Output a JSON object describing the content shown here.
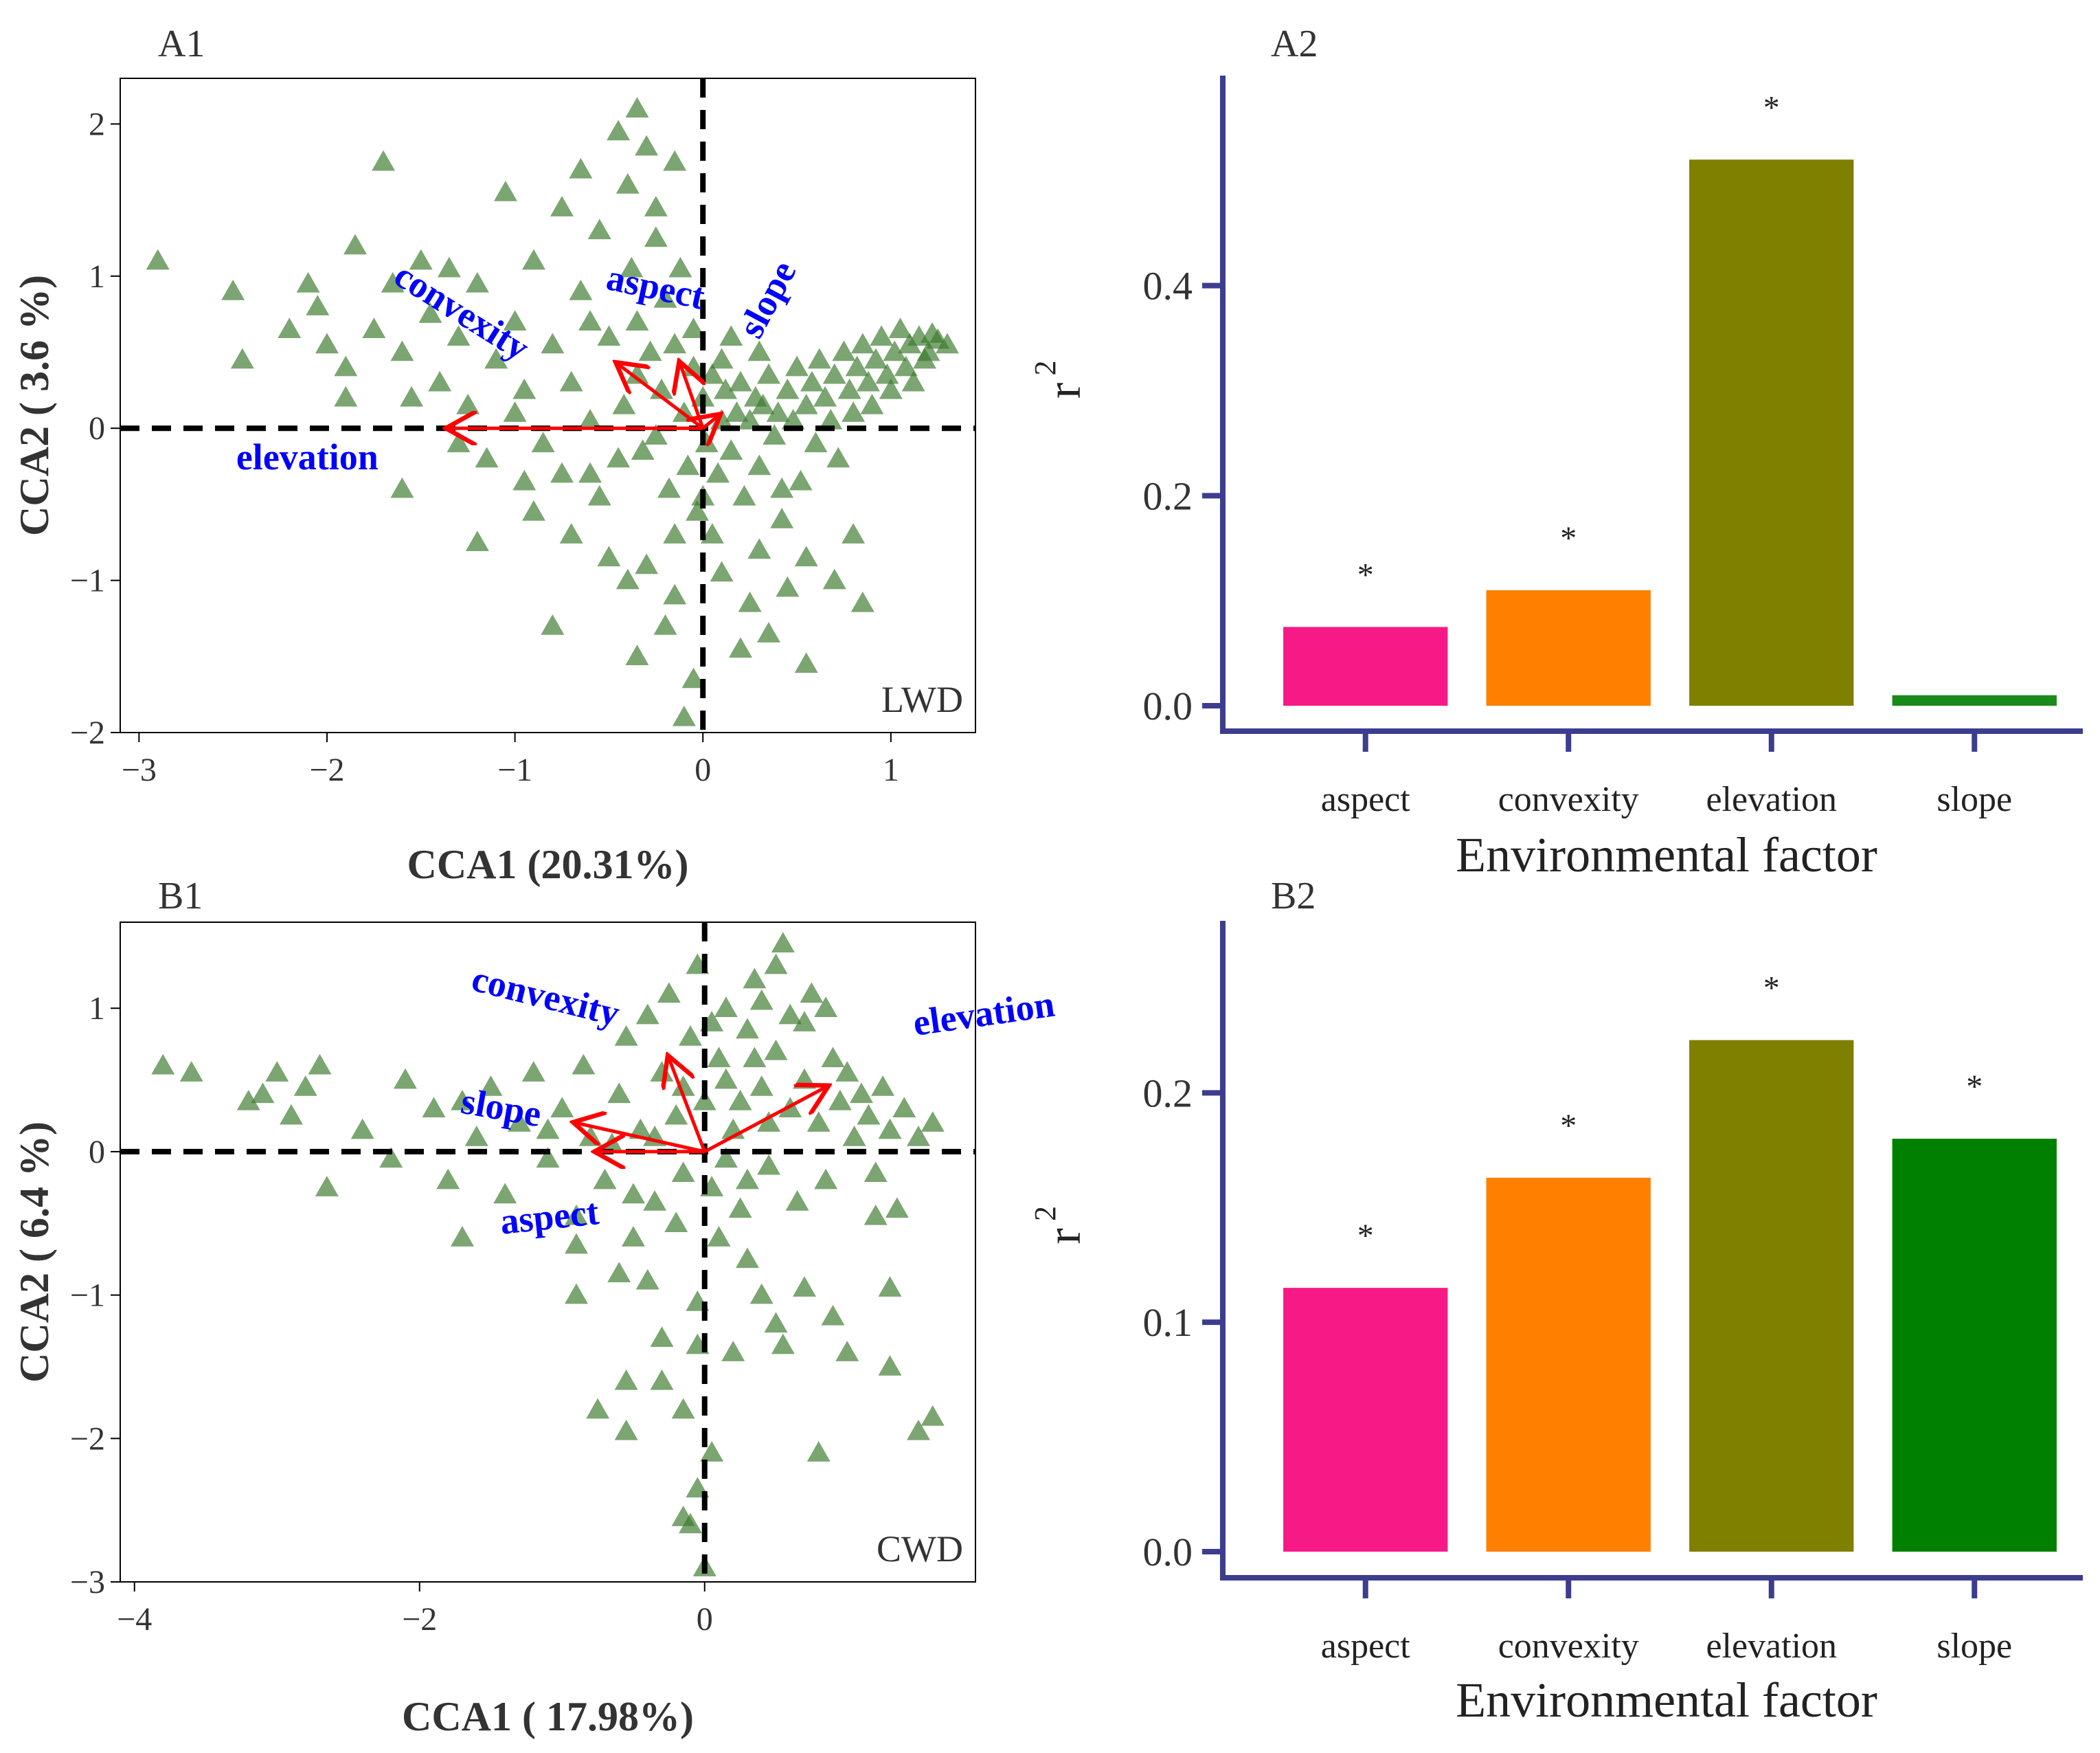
{
  "chart_data": [
    {
      "id": "A1",
      "panel_label": "A1",
      "type": "scatter",
      "title": "",
      "xlabel": "CCA1 (20.31%)",
      "ylabel": "CCA2 ( 3.6 %)",
      "xlim": [
        -3.1,
        1.45
      ],
      "ylim": [
        -2.0,
        2.3
      ],
      "xticks": [
        -3,
        -2,
        -1,
        0,
        1
      ],
      "xtick_labels": [
        "−3",
        "−2",
        "−1",
        "0",
        "1"
      ],
      "yticks": [
        -2,
        -1,
        0,
        1,
        2
      ],
      "ytick_labels": [
        "−2",
        "−1",
        "0",
        "1",
        "2"
      ],
      "grid": false,
      "corner_label": "LWD",
      "point_color": "#3d7a2e",
      "arrow_color": "#ff0000",
      "arrow_label_color": "#0000ff",
      "reference_lines": {
        "x": 0,
        "y": 0
      },
      "arrows": [
        {
          "name": "elevation",
          "end": [
            -1.35,
            0.0
          ]
        },
        {
          "name": "convexity",
          "end": [
            -0.45,
            0.42
          ]
        },
        {
          "name": "aspect",
          "end": [
            -0.12,
            0.42
          ]
        },
        {
          "name": "slope",
          "end": [
            0.08,
            0.08
          ]
        }
      ],
      "points": [
        [
          -2.9,
          1.1
        ],
        [
          -2.5,
          0.9
        ],
        [
          -2.45,
          0.45
        ],
        [
          -2.1,
          0.95
        ],
        [
          -2.05,
          0.8
        ],
        [
          -2.0,
          0.55
        ],
        [
          -1.9,
          0.4
        ],
        [
          -1.85,
          1.2
        ],
        [
          -1.75,
          0.65
        ],
        [
          -1.7,
          1.75
        ],
        [
          -1.65,
          0.95
        ],
        [
          -1.6,
          0.5
        ],
        [
          -1.55,
          0.2
        ],
        [
          -1.5,
          1.1
        ],
        [
          -1.45,
          0.75
        ],
        [
          -1.4,
          0.3
        ],
        [
          -1.35,
          1.05
        ],
        [
          -1.3,
          0.6
        ],
        [
          -1.25,
          0.15
        ],
        [
          -1.2,
          0.95
        ],
        [
          -1.15,
          -0.2
        ],
        [
          -1.1,
          0.45
        ],
        [
          -1.05,
          1.55
        ],
        [
          -1.0,
          0.7
        ],
        [
          -0.95,
          0.25
        ],
        [
          -0.9,
          1.1
        ],
        [
          -0.85,
          -0.1
        ],
        [
          -0.8,
          0.55
        ],
        [
          -0.75,
          1.45
        ],
        [
          -0.7,
          0.3
        ],
        [
          -0.65,
          0.9
        ],
        [
          -0.6,
          -0.3
        ],
        [
          -0.55,
          1.3
        ],
        [
          -0.5,
          0.6
        ],
        [
          -0.45,
          1.95
        ],
        [
          -0.42,
          0.15
        ],
        [
          -0.4,
          1.6
        ],
        [
          -0.38,
          1.05
        ],
        [
          -0.35,
          0.7
        ],
        [
          -0.32,
          -0.15
        ],
        [
          -0.3,
          1.85
        ],
        [
          -0.28,
          0.5
        ],
        [
          -0.25,
          1.25
        ],
        [
          -0.22,
          0.25
        ],
        [
          -0.2,
          0.85
        ],
        [
          -0.18,
          -0.4
        ],
        [
          -0.15,
          0.55
        ],
        [
          -0.12,
          1.05
        ],
        [
          -0.1,
          0.1
        ],
        [
          -0.08,
          -0.25
        ],
        [
          -0.05,
          0.4
        ],
        [
          -0.03,
          -0.55
        ],
        [
          0.0,
          0.2
        ],
        [
          0.02,
          -0.1
        ],
        [
          0.05,
          0.35
        ],
        [
          0.08,
          -0.3
        ],
        [
          0.1,
          0.05
        ],
        [
          0.12,
          0.25
        ],
        [
          0.15,
          -0.15
        ],
        [
          0.18,
          0.1
        ],
        [
          0.2,
          0.3
        ],
        [
          0.22,
          -0.45
        ],
        [
          0.25,
          0.05
        ],
        [
          0.28,
          0.2
        ],
        [
          0.3,
          -0.25
        ],
        [
          0.32,
          0.15
        ],
        [
          0.35,
          0.35
        ],
        [
          0.38,
          -0.05
        ],
        [
          0.4,
          0.1
        ],
        [
          0.42,
          -0.6
        ],
        [
          0.45,
          0.25
        ],
        [
          0.48,
          0.05
        ],
        [
          0.5,
          0.4
        ],
        [
          0.52,
          -0.35
        ],
        [
          0.55,
          0.15
        ],
        [
          0.58,
          0.3
        ],
        [
          0.6,
          -0.1
        ],
        [
          0.62,
          0.45
        ],
        [
          0.65,
          0.2
        ],
        [
          0.68,
          0.05
        ],
        [
          0.7,
          0.35
        ],
        [
          0.72,
          -0.2
        ],
        [
          0.75,
          0.5
        ],
        [
          0.78,
          0.25
        ],
        [
          0.8,
          0.1
        ],
        [
          0.82,
          0.4
        ],
        [
          0.85,
          0.55
        ],
        [
          0.88,
          0.3
        ],
        [
          0.9,
          0.15
        ],
        [
          0.92,
          0.45
        ],
        [
          0.95,
          0.6
        ],
        [
          0.98,
          0.35
        ],
        [
          1.0,
          0.25
        ],
        [
          1.02,
          0.5
        ],
        [
          1.05,
          0.65
        ],
        [
          1.08,
          0.4
        ],
        [
          1.1,
          0.55
        ],
        [
          1.12,
          0.3
        ],
        [
          1.15,
          0.6
        ],
        [
          1.18,
          0.45
        ],
        [
          1.2,
          0.5
        ],
        [
          1.25,
          0.58
        ],
        [
          1.3,
          0.55
        ],
        [
          1.22,
          0.62
        ],
        [
          -1.6,
          -0.4
        ],
        [
          -0.9,
          -0.55
        ],
        [
          -0.7,
          -0.7
        ],
        [
          -0.5,
          -0.85
        ],
        [
          -0.4,
          -1.0
        ],
        [
          -0.3,
          -0.9
        ],
        [
          -0.15,
          -1.1
        ],
        [
          0.1,
          -0.95
        ],
        [
          0.25,
          -1.15
        ],
        [
          0.3,
          -0.8
        ],
        [
          0.45,
          -1.05
        ],
        [
          0.55,
          -0.85
        ],
        [
          0.7,
          -1.0
        ],
        [
          0.8,
          -0.7
        ],
        [
          0.85,
          -1.15
        ],
        [
          -0.2,
          -1.3
        ],
        [
          0.2,
          -1.45
        ],
        [
          0.55,
          -1.55
        ],
        [
          -0.8,
          -1.3
        ],
        [
          -0.35,
          -1.5
        ],
        [
          -0.1,
          -1.9
        ],
        [
          0.35,
          -1.35
        ],
        [
          -0.05,
          -1.65
        ],
        [
          -1.2,
          -0.75
        ],
        [
          -0.75,
          -0.3
        ],
        [
          -0.6,
          0.05
        ],
        [
          -0.55,
          -0.45
        ],
        [
          -0.45,
          -0.2
        ],
        [
          -0.35,
          0.35
        ],
        [
          -0.25,
          -0.05
        ],
        [
          -0.15,
          -0.7
        ],
        [
          -0.05,
          0.65
        ],
        [
          0.05,
          -0.7
        ],
        [
          0.15,
          0.6
        ],
        [
          0.3,
          0.5
        ],
        [
          0.42,
          -0.4
        ],
        [
          -1.9,
          0.2
        ],
        [
          -2.2,
          0.65
        ],
        [
          -0.65,
          1.7
        ],
        [
          -0.35,
          2.1
        ],
        [
          -0.25,
          1.45
        ],
        [
          -0.15,
          1.75
        ],
        [
          0.0,
          -0.45
        ],
        [
          0.1,
          0.45
        ],
        [
          -0.6,
          0.7
        ],
        [
          -1.0,
          0.1
        ],
        [
          -1.3,
          -0.1
        ],
        [
          -0.95,
          -0.35
        ]
      ]
    },
    {
      "id": "A2",
      "panel_label": "A2",
      "type": "bar",
      "title": "",
      "xlabel": "Environmental factor",
      "ylabel": "r",
      "ylabel_superscript": "2",
      "categories": [
        "aspect",
        "convexity",
        "elevation",
        "slope"
      ],
      "values": [
        0.075,
        0.11,
        0.52,
        0.01
      ],
      "significance": [
        "*",
        "*",
        "*",
        ""
      ],
      "colors": [
        "#f71a86",
        "#ff7f00",
        "#7f7f00",
        "#1a8a1a"
      ],
      "ylim": [
        0,
        0.6
      ],
      "yticks": [
        0.0,
        0.2,
        0.4
      ],
      "ytick_labels": [
        "0.0",
        "0.2",
        "0.4"
      ],
      "axis_color": "#3d3d8f",
      "grid": false
    },
    {
      "id": "B1",
      "panel_label": "B1",
      "type": "scatter",
      "title": "",
      "xlabel": "CCA1 ( 17.98%)",
      "ylabel": "CCA2 ( 6.4 %)",
      "xlim": [
        -4.1,
        1.9
      ],
      "ylim": [
        -3.0,
        1.6
      ],
      "xticks": [
        -4,
        -2,
        0
      ],
      "xtick_labels": [
        "−4",
        "−2",
        "0"
      ],
      "yticks": [
        -3,
        -2,
        -1,
        0,
        1
      ],
      "ytick_labels": [
        "−3",
        "−2",
        "−1",
        "0",
        "1"
      ],
      "grid": false,
      "corner_label": "CWD",
      "point_color": "#3d7a2e",
      "arrow_color": "#ff0000",
      "arrow_label_color": "#0000ff",
      "reference_lines": {
        "x": 0,
        "y": 0
      },
      "arrows": [
        {
          "name": "convexity",
          "end": [
            -0.25,
            0.65
          ]
        },
        {
          "name": "elevation",
          "end": [
            0.85,
            0.45
          ]
        },
        {
          "name": "slope",
          "end": [
            -0.9,
            0.2
          ]
        },
        {
          "name": "aspect",
          "end": [
            -0.75,
            0.0
          ]
        }
      ],
      "points": [
        [
          -3.8,
          0.6
        ],
        [
          -3.6,
          0.55
        ],
        [
          -3.2,
          0.35
        ],
        [
          -3.1,
          0.4
        ],
        [
          -3.0,
          0.55
        ],
        [
          -2.9,
          0.25
        ],
        [
          -2.8,
          0.45
        ],
        [
          -2.7,
          0.6
        ],
        [
          -2.65,
          -0.25
        ],
        [
          -2.4,
          0.15
        ],
        [
          -2.2,
          -0.05
        ],
        [
          -2.1,
          0.5
        ],
        [
          -1.9,
          0.3
        ],
        [
          -1.8,
          -0.2
        ],
        [
          -1.7,
          0.35
        ],
        [
          -1.6,
          0.1
        ],
        [
          -1.5,
          0.45
        ],
        [
          -1.4,
          -0.3
        ],
        [
          -1.3,
          0.2
        ],
        [
          -1.2,
          0.55
        ],
        [
          -1.1,
          -0.05
        ],
        [
          -1.0,
          0.3
        ],
        [
          -0.9,
          -0.45
        ],
        [
          -0.85,
          0.6
        ],
        [
          -0.8,
          0.1
        ],
        [
          -0.7,
          -0.2
        ],
        [
          -0.6,
          0.4
        ],
        [
          -0.55,
          0.8
        ],
        [
          -0.5,
          -0.6
        ],
        [
          -0.45,
          0.15
        ],
        [
          -0.4,
          0.95
        ],
        [
          -0.35,
          -0.35
        ],
        [
          -0.3,
          0.55
        ],
        [
          -0.25,
          1.1
        ],
        [
          -0.2,
          0.25
        ],
        [
          -0.15,
          -0.15
        ],
        [
          -0.1,
          0.8
        ],
        [
          -0.05,
          1.3
        ],
        [
          0.0,
          0.35
        ],
        [
          0.05,
          -0.25
        ],
        [
          0.1,
          0.65
        ],
        [
          0.15,
          1.0
        ],
        [
          0.2,
          0.15
        ],
        [
          0.25,
          -0.4
        ],
        [
          0.3,
          0.85
        ],
        [
          0.35,
          1.2
        ],
        [
          0.4,
          0.45
        ],
        [
          0.45,
          -0.1
        ],
        [
          0.5,
          0.7
        ],
        [
          0.55,
          1.45
        ],
        [
          0.6,
          0.3
        ],
        [
          0.65,
          -0.35
        ],
        [
          0.7,
          0.9
        ],
        [
          0.75,
          1.1
        ],
        [
          0.8,
          0.2
        ],
        [
          0.85,
          -0.2
        ],
        [
          0.9,
          0.65
        ],
        [
          0.95,
          0.35
        ],
        [
          1.0,
          0.55
        ],
        [
          1.05,
          0.1
        ],
        [
          1.1,
          0.4
        ],
        [
          1.15,
          0.25
        ],
        [
          1.2,
          -0.15
        ],
        [
          1.25,
          0.45
        ],
        [
          1.3,
          0.15
        ],
        [
          1.35,
          -0.4
        ],
        [
          1.4,
          0.3
        ],
        [
          1.5,
          0.1
        ],
        [
          1.6,
          0.2
        ],
        [
          1.2,
          -0.45
        ],
        [
          1.3,
          -0.95
        ],
        [
          -0.9,
          -0.65
        ],
        [
          -1.7,
          -0.6
        ],
        [
          -0.9,
          -1.0
        ],
        [
          -0.6,
          -0.85
        ],
        [
          -0.4,
          -0.9
        ],
        [
          -0.3,
          -1.3
        ],
        [
          -0.55,
          -1.6
        ],
        [
          -0.3,
          -1.6
        ],
        [
          -0.75,
          -1.8
        ],
        [
          -0.55,
          -1.95
        ],
        [
          -0.15,
          -1.8
        ],
        [
          -0.05,
          -1.35
        ],
        [
          -0.05,
          -1.05
        ],
        [
          0.05,
          -2.1
        ],
        [
          0.2,
          -1.4
        ],
        [
          0.5,
          -1.2
        ],
        [
          0.55,
          -1.35
        ],
        [
          0.7,
          -0.95
        ],
        [
          0.9,
          -1.15
        ],
        [
          1.0,
          -1.4
        ],
        [
          1.3,
          -1.5
        ],
        [
          1.6,
          -1.85
        ],
        [
          1.5,
          -1.95
        ],
        [
          0.8,
          -2.1
        ],
        [
          -0.1,
          -2.6
        ],
        [
          0.0,
          -2.9
        ],
        [
          -0.15,
          -2.55
        ],
        [
          -0.05,
          -2.35
        ],
        [
          0.3,
          -0.75
        ],
        [
          0.4,
          -1.0
        ],
        [
          -0.2,
          -0.5
        ],
        [
          0.1,
          -0.6
        ],
        [
          -0.5,
          -0.3
        ],
        [
          -0.65,
          0.05
        ],
        [
          -1.1,
          0.15
        ],
        [
          -0.35,
          0.1
        ],
        [
          0.15,
          0.5
        ],
        [
          0.45,
          0.2
        ],
        [
          0.7,
          0.5
        ],
        [
          0.25,
          0.35
        ],
        [
          0.6,
          0.95
        ],
        [
          0.85,
          1.0
        ],
        [
          0.35,
          0.65
        ],
        [
          -0.15,
          0.45
        ],
        [
          0.05,
          0.9
        ],
        [
          0.5,
          1.3
        ],
        [
          0.4,
          1.05
        ],
        [
          0.15,
          -0.05
        ],
        [
          0.3,
          -0.2
        ]
      ]
    },
    {
      "id": "B2",
      "panel_label": "B2",
      "type": "bar",
      "title": "",
      "xlabel": "Environmental factor",
      "ylabel": "r",
      "ylabel_superscript": "2",
      "categories": [
        "aspect",
        "convexity",
        "elevation",
        "slope"
      ],
      "values": [
        0.115,
        0.163,
        0.223,
        0.18
      ],
      "significance": [
        "*",
        "*",
        "*",
        "*"
      ],
      "colors": [
        "#f71a86",
        "#ff7f00",
        "#7f7f00",
        "#008000"
      ],
      "ylim": [
        0,
        0.275
      ],
      "yticks": [
        0.0,
        0.1,
        0.2
      ],
      "ytick_labels": [
        "0.0",
        "0.1",
        "0.2"
      ],
      "axis_color": "#3d3d8f",
      "grid": false
    }
  ]
}
